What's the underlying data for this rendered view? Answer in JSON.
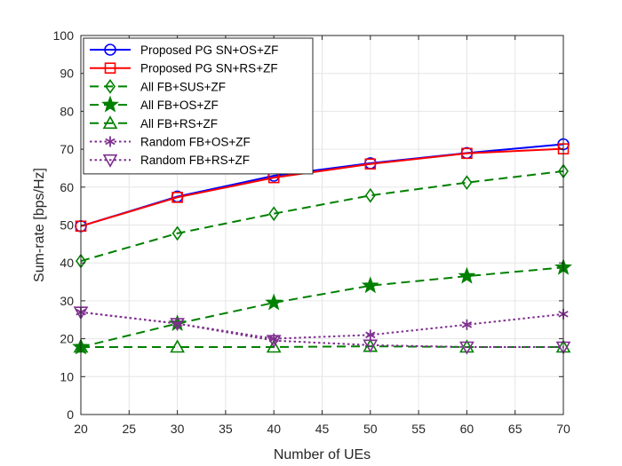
{
  "chart_data": {
    "type": "line",
    "xlabel": "Number of UEs",
    "ylabel": "Sum-rate [bps/Hz]",
    "xlim": [
      20,
      70
    ],
    "ylim": [
      0,
      100
    ],
    "xticks": [
      20,
      25,
      30,
      35,
      40,
      45,
      50,
      55,
      60,
      65,
      70
    ],
    "yticks": [
      0,
      10,
      20,
      30,
      40,
      50,
      60,
      70,
      80,
      90,
      100
    ],
    "grid": true,
    "legend_position": "top-left",
    "series": [
      {
        "name": "Proposed PG SN+OS+ZF",
        "color": "#0000ff",
        "dash": "solid",
        "marker": "circle",
        "x": [
          20,
          30,
          40,
          50,
          60,
          70
        ],
        "y": [
          49.7,
          57.5,
          63.0,
          66.3,
          69.0,
          71.3
        ]
      },
      {
        "name": "Proposed PG SN+RS+ZF",
        "color": "#ff0000",
        "dash": "solid",
        "marker": "square",
        "x": [
          20,
          30,
          40,
          50,
          60,
          70
        ],
        "y": [
          49.7,
          57.3,
          62.5,
          66.1,
          68.9,
          70.1
        ]
      },
      {
        "name": "All FB+SUS+ZF",
        "color": "#008000",
        "dash": "dashed",
        "marker": "diamond",
        "x": [
          20,
          30,
          40,
          50,
          60,
          70
        ],
        "y": [
          40.5,
          47.8,
          53.0,
          57.8,
          61.2,
          64.2
        ]
      },
      {
        "name": "All FB+OS+ZF",
        "color": "#008000",
        "dash": "dashed",
        "marker": "star",
        "x": [
          20,
          30,
          40,
          50,
          60,
          70
        ],
        "y": [
          17.8,
          24.0,
          29.5,
          34.0,
          36.5,
          38.8
        ]
      },
      {
        "name": "All FB+RS+ZF",
        "color": "#008000",
        "dash": "dashed",
        "marker": "triangle-up",
        "x": [
          20,
          30,
          40,
          50,
          60,
          70
        ],
        "y": [
          17.8,
          17.8,
          17.8,
          18.0,
          17.8,
          17.8
        ]
      },
      {
        "name": "Random FB+OS+ZF",
        "color": "#7e2f8e",
        "dash": "dotted",
        "marker": "asterisk",
        "x": [
          20,
          30,
          40,
          50,
          60,
          70
        ],
        "y": [
          27.0,
          24.0,
          20.0,
          21.0,
          23.7,
          26.5
        ]
      },
      {
        "name": "Random FB+RS+ZF",
        "color": "#7e2f8e",
        "dash": "dotted",
        "marker": "triangle-down",
        "x": [
          20,
          30,
          40,
          50,
          60,
          70
        ],
        "y": [
          27.0,
          24.0,
          19.5,
          18.3,
          17.8,
          17.8
        ]
      }
    ]
  }
}
